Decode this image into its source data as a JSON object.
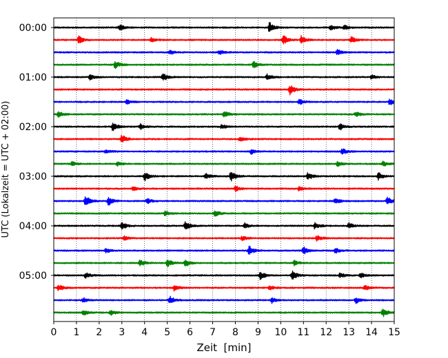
{
  "chart_data": {
    "type": "line",
    "title": "",
    "xlabel": "Zeit  [min]",
    "ylabel": "UTC (Lokalzeit = UTC + 02:00)",
    "xlim": [
      0,
      15
    ],
    "xticks": [
      0,
      1,
      2,
      3,
      4,
      5,
      6,
      7,
      8,
      9,
      10,
      11,
      12,
      13,
      14,
      15
    ],
    "xtick_labels": [
      "0",
      "1",
      "2",
      "3",
      "4",
      "5",
      "6",
      "7",
      "8",
      "9",
      "10",
      "11",
      "12",
      "13",
      "14",
      "15"
    ],
    "ytick_labels": [
      "00:00",
      "01:00",
      "02:00",
      "03:00",
      "04:00",
      "05:00"
    ],
    "row_minutes": 15,
    "rows_per_tick": 4,
    "grid": "vertical dotted",
    "color_cycle": [
      "#000000",
      "#ff0000",
      "#0000ff",
      "#008000"
    ],
    "series": [
      {
        "start": "00:00",
        "events": [
          [
            2.9,
            0.6
          ],
          [
            9.5,
            1.0
          ],
          [
            12.2,
            0.5
          ],
          [
            12.8,
            0.4
          ]
        ]
      },
      {
        "start": "00:15",
        "events": [
          [
            1.1,
            0.7
          ],
          [
            4.3,
            0.4
          ],
          [
            10.1,
            0.9
          ],
          [
            10.9,
            0.7
          ],
          [
            13.1,
            0.6
          ]
        ]
      },
      {
        "start": "00:30",
        "events": [
          [
            5.1,
            0.4
          ],
          [
            7.3,
            0.4
          ],
          [
            12.5,
            0.5
          ]
        ]
      },
      {
        "start": "00:45",
        "events": [
          [
            2.7,
            0.7
          ],
          [
            8.8,
            0.6
          ]
        ]
      },
      {
        "start": "01:00",
        "events": [
          [
            1.6,
            0.5
          ],
          [
            4.8,
            0.7
          ],
          [
            9.4,
            0.5
          ],
          [
            14.0,
            0.4
          ]
        ]
      },
      {
        "start": "01:15",
        "events": [
          [
            10.4,
            0.9
          ]
        ]
      },
      {
        "start": "01:30",
        "events": [
          [
            3.2,
            0.4
          ],
          [
            10.8,
            0.6
          ],
          [
            14.8,
            0.6
          ]
        ]
      },
      {
        "start": "01:45",
        "events": [
          [
            0.2,
            0.5
          ],
          [
            7.5,
            0.7
          ],
          [
            13.3,
            0.5
          ]
        ]
      },
      {
        "start": "02:00",
        "events": [
          [
            2.6,
            0.8
          ],
          [
            3.8,
            0.6
          ],
          [
            7.4,
            0.4
          ],
          [
            12.6,
            0.7
          ]
        ]
      },
      {
        "start": "02:15",
        "events": [
          [
            3.0,
            0.8
          ],
          [
            8.2,
            0.4
          ]
        ]
      },
      {
        "start": "02:30",
        "events": [
          [
            2.3,
            0.4
          ],
          [
            8.7,
            0.5
          ],
          [
            12.7,
            0.6
          ]
        ]
      },
      {
        "start": "02:45",
        "events": [
          [
            0.8,
            0.4
          ],
          [
            2.8,
            0.4
          ],
          [
            12.5,
            0.4
          ],
          [
            14.5,
            0.5
          ]
        ]
      },
      {
        "start": "03:00",
        "events": [
          [
            4.0,
            0.9
          ],
          [
            6.7,
            0.5
          ],
          [
            7.8,
            1.0
          ],
          [
            11.2,
            0.7
          ],
          [
            14.3,
            0.7
          ]
        ]
      },
      {
        "start": "03:15",
        "events": [
          [
            3.5,
            0.4
          ],
          [
            8.0,
            0.5
          ],
          [
            10.8,
            0.4
          ]
        ]
      },
      {
        "start": "03:30",
        "events": [
          [
            1.4,
            1.0
          ],
          [
            2.4,
            0.8
          ],
          [
            4.1,
            0.5
          ],
          [
            12.4,
            0.5
          ],
          [
            14.7,
            0.8
          ]
        ]
      },
      {
        "start": "03:45",
        "events": [
          [
            4.9,
            0.4
          ],
          [
            7.1,
            0.6
          ]
        ]
      },
      {
        "start": "04:00",
        "events": [
          [
            3.0,
            0.7
          ],
          [
            5.8,
            0.9
          ],
          [
            8.4,
            0.5
          ],
          [
            11.5,
            0.6
          ],
          [
            13.0,
            0.5
          ]
        ]
      },
      {
        "start": "04:15",
        "events": [
          [
            3.1,
            0.4
          ],
          [
            8.3,
            0.4
          ],
          [
            11.6,
            0.6
          ]
        ]
      },
      {
        "start": "04:30",
        "events": [
          [
            2.3,
            0.4
          ],
          [
            8.6,
            0.9
          ],
          [
            11.0,
            0.7
          ],
          [
            12.4,
            0.5
          ]
        ]
      },
      {
        "start": "04:45",
        "events": [
          [
            3.8,
            0.6
          ],
          [
            5.0,
            0.8
          ],
          [
            5.8,
            0.7
          ],
          [
            10.6,
            0.5
          ]
        ]
      },
      {
        "start": "05:00",
        "events": [
          [
            1.4,
            0.5
          ],
          [
            9.1,
            0.8
          ],
          [
            10.5,
            0.9
          ],
          [
            12.6,
            0.5
          ],
          [
            13.5,
            0.5
          ]
        ]
      },
      {
        "start": "05:15",
        "events": [
          [
            0.2,
            0.6
          ],
          [
            5.3,
            0.5
          ],
          [
            9.5,
            0.4
          ],
          [
            13.7,
            0.5
          ]
        ]
      },
      {
        "start": "05:30",
        "events": [
          [
            1.3,
            0.4
          ],
          [
            5.1,
            0.8
          ],
          [
            9.6,
            0.5
          ],
          [
            13.3,
            0.6
          ]
        ]
      },
      {
        "start": "05:45",
        "events": [
          [
            1.3,
            0.5
          ],
          [
            2.5,
            0.5
          ],
          [
            14.5,
            0.9
          ]
        ]
      }
    ]
  }
}
